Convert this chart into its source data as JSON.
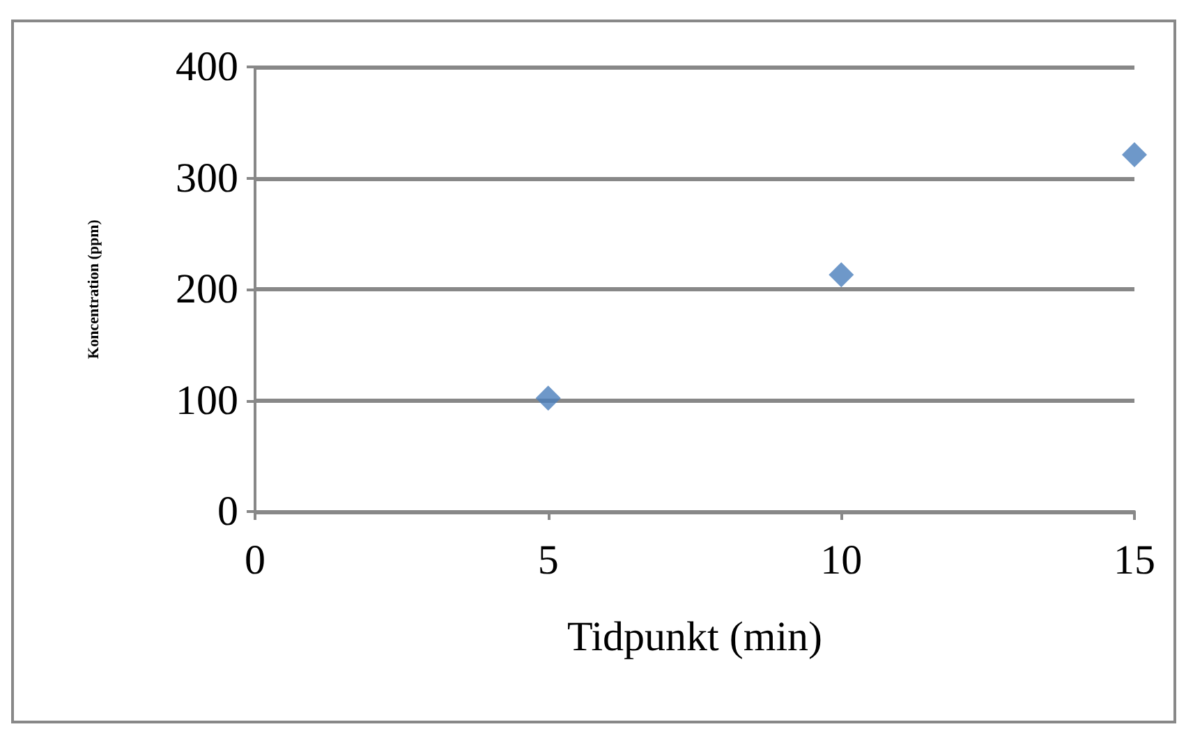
{
  "chart_data": {
    "type": "scatter",
    "xlabel": "Tidpunkt (min)",
    "ylabel": "Koncentration (ppm)",
    "x": [
      5,
      10,
      15
    ],
    "series": [
      {
        "color": "#4a7ebb",
        "values": [
          102,
          213,
          321
        ]
      }
    ],
    "xlim": [
      0,
      15
    ],
    "xticks": [
      0,
      5,
      10,
      15
    ],
    "ylim": [
      0,
      400
    ],
    "yticks": [
      0,
      100,
      200,
      300,
      400
    ],
    "grid": "y",
    "marker": "diamond"
  }
}
